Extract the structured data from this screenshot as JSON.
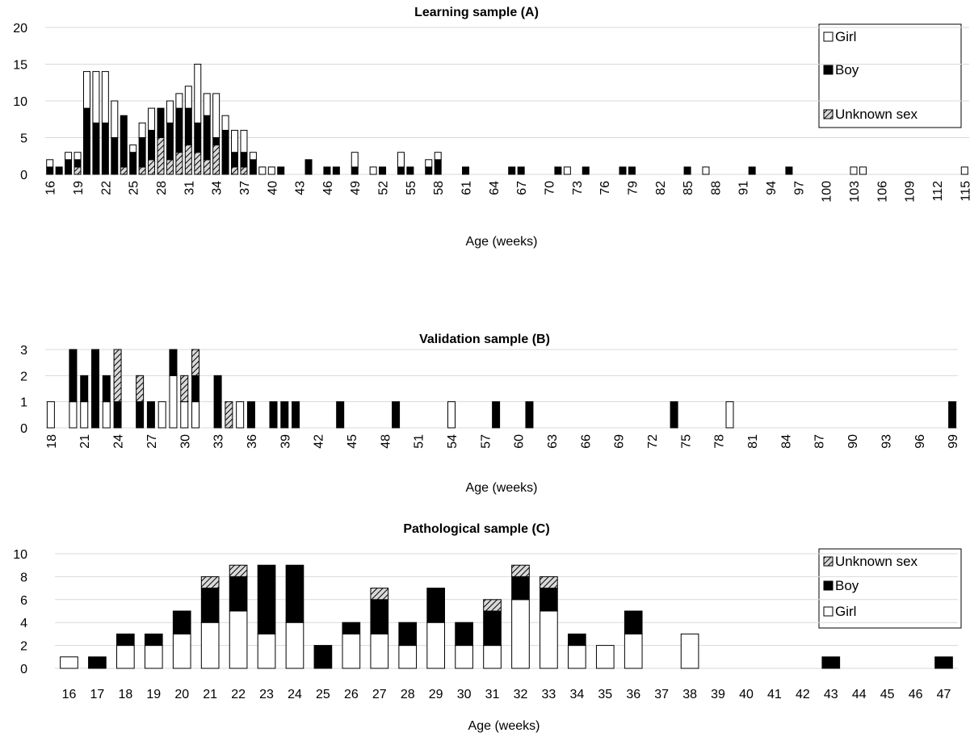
{
  "legend": {
    "girl": "Girl",
    "boy": "Boy",
    "unknown": "Unknown sex"
  },
  "colors": {
    "girl": "#ffffff",
    "boy": "#000000",
    "unknown_stripe": "#000000",
    "unknown_bg": "#d9d9d9",
    "grid": "#d9d9d9"
  },
  "chart_data": [
    {
      "type": "bar",
      "stacked": true,
      "title": "Learning sample (A)",
      "xlabel": "Age (weeks)",
      "ylabel": "",
      "ylim": [
        0,
        20
      ],
      "yticks": [
        0,
        5,
        10,
        15,
        20
      ],
      "xticks": [
        16,
        19,
        22,
        25,
        28,
        31,
        34,
        37,
        40,
        43,
        46,
        49,
        52,
        55,
        58,
        61,
        64,
        67,
        70,
        73,
        76,
        79,
        82,
        85,
        88,
        91,
        94,
        97,
        100,
        103,
        106,
        109,
        112,
        115
      ],
      "x": [
        16,
        17,
        18,
        19,
        20,
        21,
        22,
        23,
        24,
        25,
        26,
        27,
        28,
        29,
        30,
        31,
        32,
        33,
        34,
        35,
        36,
        37,
        38,
        39,
        40,
        41,
        44,
        46,
        47,
        49,
        51,
        52,
        54,
        55,
        57,
        58,
        61,
        66,
        67,
        71,
        72,
        74,
        78,
        79,
        85,
        87,
        92,
        96,
        103,
        104,
        115
      ],
      "series": [
        {
          "name": "Unknown sex",
          "values": [
            0,
            0,
            0,
            1,
            0,
            0,
            0,
            0,
            1,
            0,
            1,
            2,
            5,
            2,
            3,
            4,
            3,
            2,
            4,
            0,
            1,
            1,
            0,
            0,
            0,
            0,
            0,
            0,
            0,
            0,
            0,
            0,
            0,
            0,
            0,
            0,
            0,
            0,
            0,
            0,
            0,
            0,
            0,
            0,
            0,
            0,
            0,
            0,
            0,
            0,
            0
          ]
        },
        {
          "name": "Boy",
          "values": [
            1,
            1,
            2,
            1,
            9,
            7,
            7,
            5,
            7,
            3,
            4,
            4,
            4,
            5,
            6,
            5,
            4,
            6,
            1,
            6,
            2,
            2,
            2,
            0,
            0,
            1,
            2,
            1,
            1,
            1,
            0,
            1,
            1,
            1,
            1,
            2,
            1,
            1,
            1,
            1,
            0,
            1,
            1,
            1,
            1,
            0,
            1,
            1,
            0,
            0,
            0
          ]
        },
        {
          "name": "Girl",
          "values": [
            1,
            0,
            1,
            1,
            5,
            7,
            7,
            5,
            0,
            1,
            2,
            3,
            0,
            3,
            2,
            3,
            8,
            3,
            6,
            2,
            3,
            3,
            1,
            1,
            1,
            0,
            0,
            0,
            0,
            2,
            1,
            0,
            2,
            0,
            1,
            1,
            0,
            0,
            0,
            0,
            1,
            0,
            0,
            0,
            0,
            1,
            0,
            0,
            1,
            1,
            1
          ]
        }
      ],
      "legend_position": "top-right",
      "grid": true
    },
    {
      "type": "bar",
      "stacked": true,
      "title": "Validation sample (B)",
      "xlabel": "Age (weeks)",
      "ylabel": "",
      "ylim": [
        0,
        3
      ],
      "yticks": [
        0,
        1,
        2,
        3
      ],
      "xticks": [
        18,
        21,
        24,
        27,
        30,
        33,
        36,
        39,
        42,
        45,
        48,
        51,
        54,
        57,
        60,
        63,
        66,
        69,
        72,
        75,
        78,
        81,
        84,
        87,
        90,
        93,
        96,
        99
      ],
      "x": [
        18,
        20,
        21,
        22,
        23,
        24,
        26,
        27,
        28,
        29,
        30,
        31,
        33,
        34,
        35,
        36,
        38,
        39,
        40,
        44,
        49,
        54,
        58,
        61,
        74,
        79,
        99
      ],
      "series": [
        {
          "name": "Girl",
          "values": [
            1,
            1,
            1,
            0,
            1,
            0,
            0,
            0,
            1,
            2,
            1,
            1,
            0,
            0,
            1,
            0,
            0,
            0,
            0,
            0,
            0,
            1,
            0,
            0,
            0,
            1,
            0
          ]
        },
        {
          "name": "Boy",
          "values": [
            0,
            2,
            1,
            3,
            1,
            1,
            1,
            1,
            0,
            1,
            0,
            1,
            2,
            0,
            0,
            1,
            1,
            1,
            1,
            1,
            1,
            0,
            1,
            1,
            1,
            0,
            1
          ]
        },
        {
          "name": "Unknown sex",
          "values": [
            0,
            0,
            0,
            0,
            0,
            2,
            1,
            0,
            0,
            0,
            1,
            1,
            0,
            1,
            0,
            0,
            0,
            0,
            0,
            0,
            0,
            0,
            0,
            0,
            0,
            0,
            0
          ]
        }
      ],
      "legend_position": "none",
      "grid": true
    },
    {
      "type": "bar",
      "stacked": true,
      "title": "Pathological sample (C)",
      "xlabel": "Age (weeks)",
      "ylabel": "",
      "ylim": [
        0,
        10
      ],
      "yticks": [
        0,
        2,
        4,
        6,
        8,
        10
      ],
      "categories": [
        "16",
        "17",
        "18",
        "19",
        "20",
        "21",
        "22",
        "23",
        "24",
        "25",
        "26",
        "27",
        "28",
        "29",
        "30",
        "31",
        "32",
        "33",
        "34",
        "35",
        "36",
        "37",
        "38",
        "39",
        "40",
        "41",
        "42",
        "43",
        "44",
        "45",
        "46",
        "47"
      ],
      "series": [
        {
          "name": "Girl",
          "values": [
            1,
            0,
            2,
            2,
            3,
            4,
            5,
            3,
            4,
            0,
            3,
            3,
            2,
            4,
            2,
            2,
            6,
            5,
            2,
            2,
            3,
            0,
            3,
            0,
            0,
            0,
            0,
            0,
            0,
            0,
            0,
            0
          ]
        },
        {
          "name": "Boy",
          "values": [
            0,
            1,
            1,
            1,
            2,
            3,
            3,
            6,
            5,
            2,
            1,
            3,
            2,
            3,
            2,
            3,
            2,
            2,
            1,
            0,
            2,
            0,
            0,
            0,
            0,
            0,
            0,
            1,
            0,
            0,
            0,
            1
          ]
        },
        {
          "name": "Unknown sex",
          "values": [
            0,
            0,
            0,
            0,
            0,
            1,
            1,
            0,
            0,
            0,
            0,
            1,
            0,
            0,
            0,
            1,
            1,
            1,
            0,
            0,
            0,
            0,
            0,
            0,
            0,
            0,
            0,
            0,
            0,
            0,
            0,
            0
          ]
        }
      ],
      "legend_position": "top-right",
      "grid": true
    }
  ]
}
